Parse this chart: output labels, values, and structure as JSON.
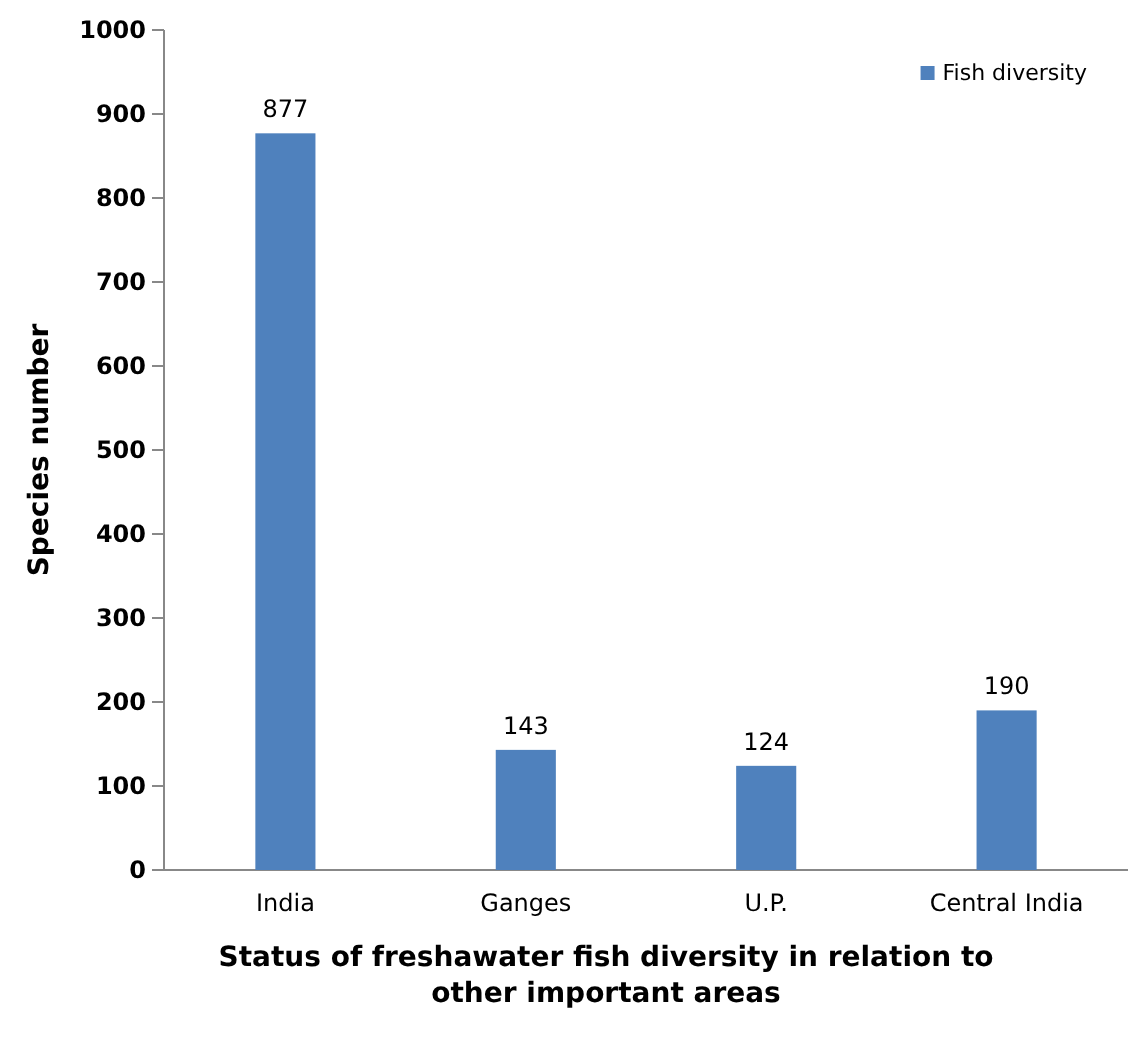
{
  "chart_data": {
    "type": "bar",
    "categories": [
      "India",
      "Ganges",
      "U.P.",
      "Central India"
    ],
    "series": [
      {
        "name": "Fish diversity",
        "color": "#4f81bd",
        "values": [
          877,
          143,
          124,
          190
        ]
      }
    ],
    "ylim": [
      0,
      1000
    ],
    "yticks": [
      0,
      100,
      200,
      300,
      400,
      500,
      600,
      700,
      800,
      900,
      1000
    ],
    "ylabel": "Species number",
    "xlabel": "Status of freshawater fish diversity in relation to other important areas",
    "data_labels": true,
    "legend": "top right",
    "grid": false
  }
}
